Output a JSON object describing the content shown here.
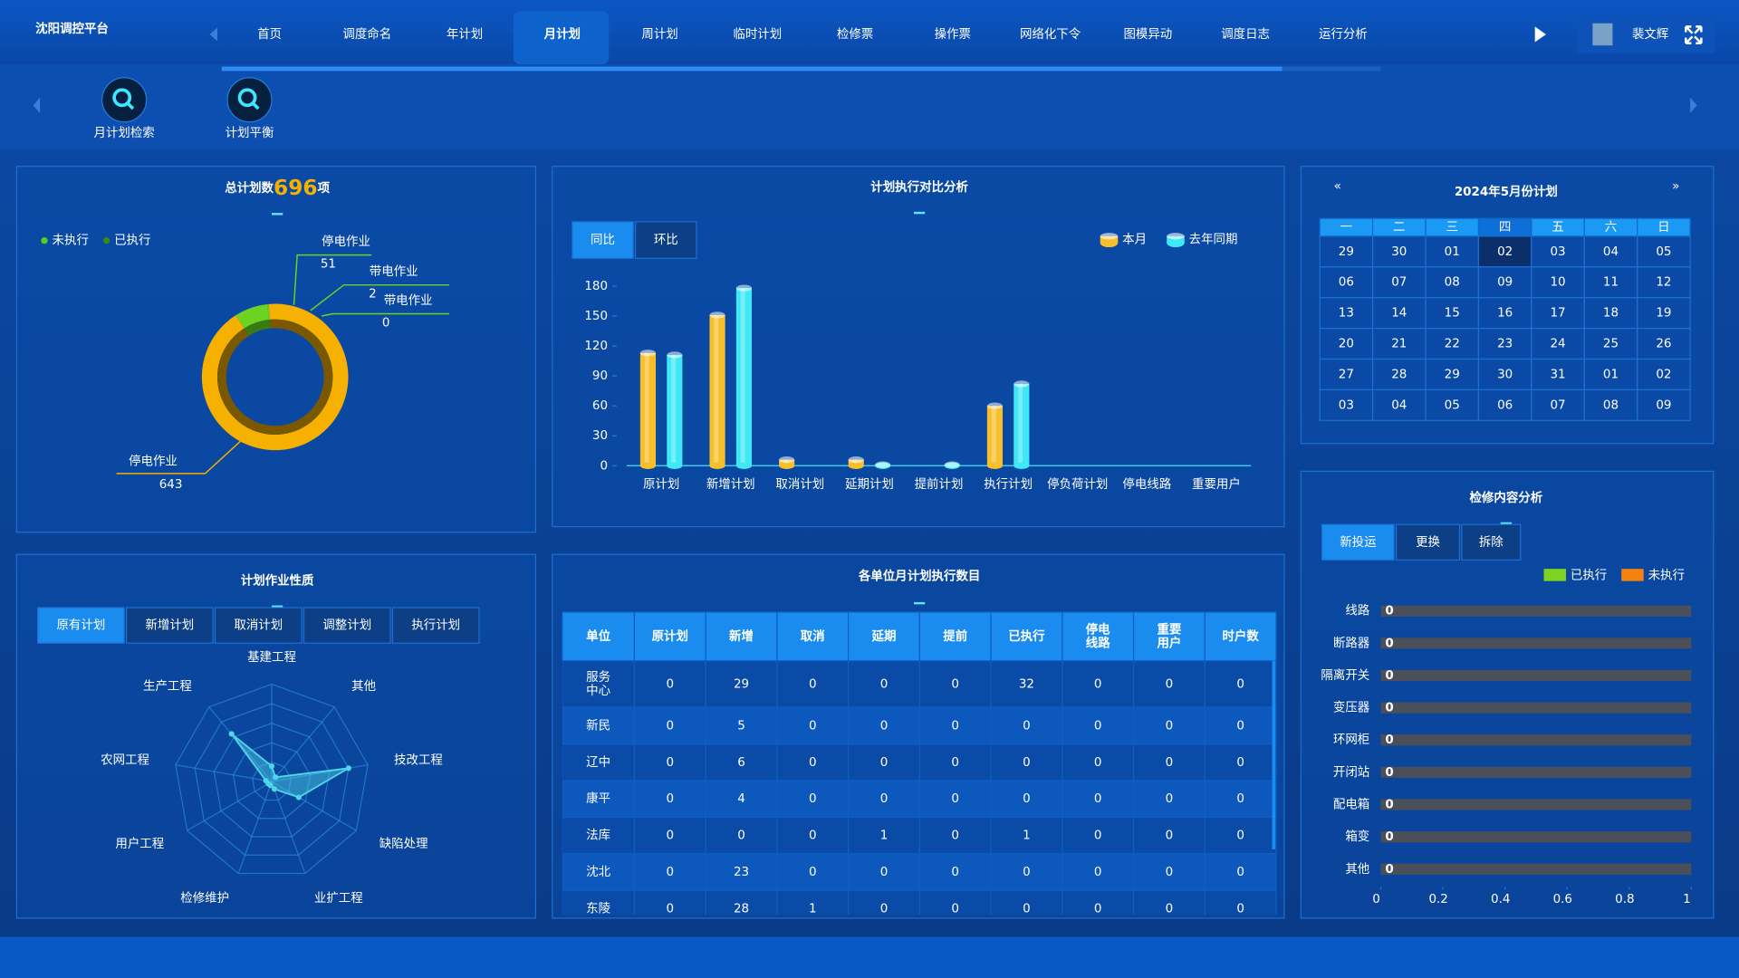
{
  "header": {
    "title": "沈阳调控平台",
    "nav": [
      "首页",
      "调度命名",
      "年计划",
      "月计划",
      "周计划",
      "临时计划",
      "检修票",
      "操作票",
      "网络化下令",
      "图模异动",
      "调度日志",
      "运行分析"
    ],
    "active": 3,
    "user": "裴文辉"
  },
  "toolbar": [
    "月计划检索",
    "计划平衡"
  ],
  "chart_data": [
    {
      "type": "pie",
      "title": "总计划数",
      "total": 696,
      "unit": "项",
      "legend": [
        {
          "name": "未执行",
          "color": "#52d11c"
        },
        {
          "name": "已执行",
          "color": "#3a8a12"
        }
      ],
      "categories": [
        "停电作业",
        "停电作业",
        "带电作业",
        "带电作业"
      ],
      "values": [
        643,
        51,
        2,
        0
      ],
      "colors": [
        "#f5b000",
        "#6cd320",
        "#6cd320",
        "#6cd320"
      ]
    },
    {
      "type": "bar",
      "title": "计划执行对比分析",
      "tabs": [
        "同比",
        "环比"
      ],
      "categories": [
        "原计划",
        "新增计划",
        "取消计划",
        "延期计划",
        "提前计划",
        "执行计划",
        "停负荷计划",
        "停电线路",
        "重要用户"
      ],
      "series": [
        {
          "name": "本月",
          "color": "#f7bf2a",
          "values": [
            113,
            151,
            6,
            6,
            0,
            60,
            0,
            0,
            0
          ]
        },
        {
          "name": "去年同期",
          "color": "#3ee8f5",
          "values": [
            111,
            178,
            0,
            1,
            1,
            82,
            0,
            0,
            0
          ]
        }
      ],
      "ylim": [
        0,
        180
      ],
      "yticks": [
        0,
        30,
        60,
        90,
        120,
        150,
        180
      ]
    },
    {
      "type": "radar",
      "title": "计划作业性质",
      "tabs": [
        "原有计划",
        "新增计划",
        "取消计划",
        "调整计划",
        "执行计划"
      ],
      "categories": [
        "基建工程",
        "其他",
        "技改工程",
        "缺陷处理",
        "业扩工程",
        "检修维护",
        "用户工程",
        "农网工程",
        "生产工程"
      ],
      "values": [
        8,
        3,
        40,
        16,
        4,
        2,
        2,
        3,
        32
      ],
      "rlim": [
        0,
        50
      ],
      "color": "#4fd6e8"
    },
    {
      "type": "hbar",
      "title": "检修内容分析",
      "tabs": [
        "新投运",
        "更换",
        "拆除"
      ],
      "categories": [
        "线路",
        "断路器",
        "隔离开关",
        "变压器",
        "环网柜",
        "开闭站",
        "配电箱",
        "箱变",
        "其他"
      ],
      "series": [
        {
          "name": "已执行",
          "color": "#7ed321",
          "values": [
            0,
            0,
            0,
            0,
            0,
            0,
            0,
            0,
            0
          ]
        },
        {
          "name": "未执行",
          "color": "#f5820f",
          "values": [
            0,
            0,
            0,
            0,
            0,
            0,
            0,
            0,
            0
          ]
        }
      ],
      "xlim": [
        0,
        1
      ],
      "xticks": [
        0,
        0.2,
        0.4,
        0.6,
        0.8,
        1
      ]
    }
  ],
  "calendar": {
    "title": "2024年5月份计划",
    "weekdays": [
      "一",
      "二",
      "三",
      "四",
      "五",
      "六",
      "日"
    ],
    "days": [
      "29",
      "30",
      "01",
      "02",
      "03",
      "04",
      "05",
      "06",
      "07",
      "08",
      "09",
      "10",
      "11",
      "12",
      "13",
      "14",
      "15",
      "16",
      "17",
      "18",
      "19",
      "20",
      "21",
      "22",
      "23",
      "24",
      "25",
      "26",
      "27",
      "28",
      "29",
      "30",
      "31",
      "01",
      "02",
      "03",
      "04",
      "05",
      "06",
      "07",
      "08",
      "09"
    ],
    "selected": 3
  },
  "table": {
    "title": "各单位月计划执行数目",
    "columns": [
      "单位",
      "原计划",
      "新增",
      "取消",
      "延期",
      "提前",
      "已执行",
      "停电线路",
      "重要用户",
      "时户数"
    ],
    "rows": [
      [
        "服务中心",
        0,
        29,
        0,
        0,
        0,
        32,
        0,
        0,
        0
      ],
      [
        "新民",
        0,
        5,
        0,
        0,
        0,
        0,
        0,
        0,
        0
      ],
      [
        "辽中",
        0,
        6,
        0,
        0,
        0,
        0,
        0,
        0,
        0
      ],
      [
        "康平",
        0,
        4,
        0,
        0,
        0,
        0,
        0,
        0,
        0
      ],
      [
        "法库",
        0,
        0,
        0,
        1,
        0,
        1,
        0,
        0,
        0
      ],
      [
        "沈北",
        0,
        23,
        0,
        0,
        0,
        0,
        0,
        0,
        0
      ],
      [
        "东陵",
        0,
        28,
        1,
        0,
        0,
        0,
        0,
        0,
        0
      ]
    ]
  }
}
